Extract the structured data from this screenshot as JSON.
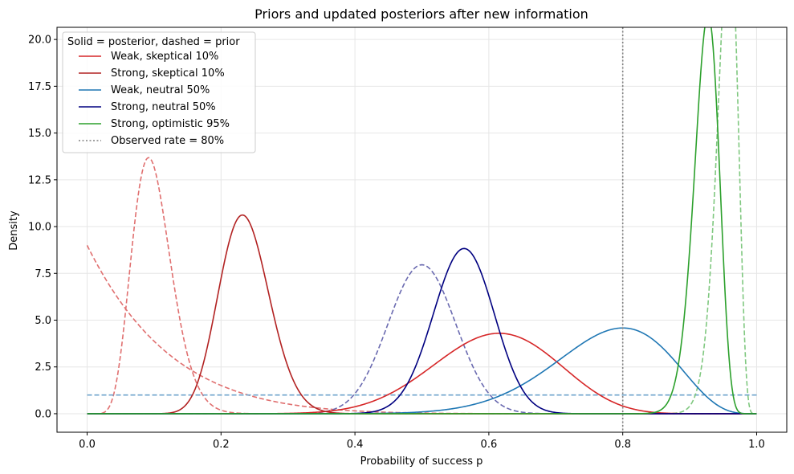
{
  "chart_data": {
    "type": "line",
    "title": "Priors and updated posteriors after new information",
    "xlabel": "Probability of success p",
    "ylabel": "Density",
    "xlim": [
      -0.045,
      1.045
    ],
    "ylim": [
      -0.99,
      20.65
    ],
    "x_ticks": [
      0.0,
      0.2,
      0.4,
      0.6,
      0.8,
      1.0
    ],
    "x_tick_labels": [
      "0.0",
      "0.2",
      "0.4",
      "0.6",
      "0.8",
      "1.0"
    ],
    "y_ticks": [
      0.0,
      2.5,
      5.0,
      7.5,
      10.0,
      12.5,
      15.0,
      17.5,
      20.0
    ],
    "y_tick_labels": [
      "0.0",
      "2.5",
      "5.0",
      "7.5",
      "10.0",
      "12.5",
      "15.0",
      "17.5",
      "20.0"
    ],
    "grid": true,
    "legend_title": "Solid = posterior, dashed = prior",
    "legend_position": "top-left",
    "observed_rate": {
      "x": 0.8,
      "label": "Observed rate = 80%",
      "color": "#808080"
    },
    "series": [
      {
        "name": "Weak, skeptical 10%",
        "role": "posterior",
        "color": "#d62728",
        "style": "solid",
        "beta": [
          17,
          11
        ]
      },
      {
        "name": "Strong, skeptical 10%",
        "role": "posterior",
        "color": "#b22222",
        "style": "solid",
        "beta": [
          30,
          97
        ]
      },
      {
        "name": "Weak, neutral 50%",
        "role": "posterior",
        "color": "#1f77b4",
        "style": "solid",
        "beta": [
          17,
          5
        ]
      },
      {
        "name": "Strong, neutral 50%",
        "role": "posterior",
        "color": "#000080",
        "style": "solid",
        "beta": [
          68,
          53
        ]
      },
      {
        "name": "Strong, optimistic 95%",
        "role": "posterior",
        "color": "#2ca02c",
        "style": "solid",
        "beta": [
          180,
          15
        ]
      },
      {
        "role": "prior",
        "color": "#e07070",
        "style": "dashed",
        "beta": [
          1,
          9
        ]
      },
      {
        "role": "prior",
        "color": "#e07070",
        "style": "dashed",
        "beta": [
          10,
          90
        ]
      },
      {
        "role": "prior",
        "color": "#6fa4cc",
        "style": "dashed",
        "beta": [
          1,
          1
        ]
      },
      {
        "role": "prior",
        "color": "#6a6ab0",
        "style": "dashed",
        "beta": [
          50,
          50
        ]
      },
      {
        "role": "prior",
        "color": "#80c880",
        "style": "dashed",
        "beta": [
          165,
          8
        ]
      }
    ]
  }
}
